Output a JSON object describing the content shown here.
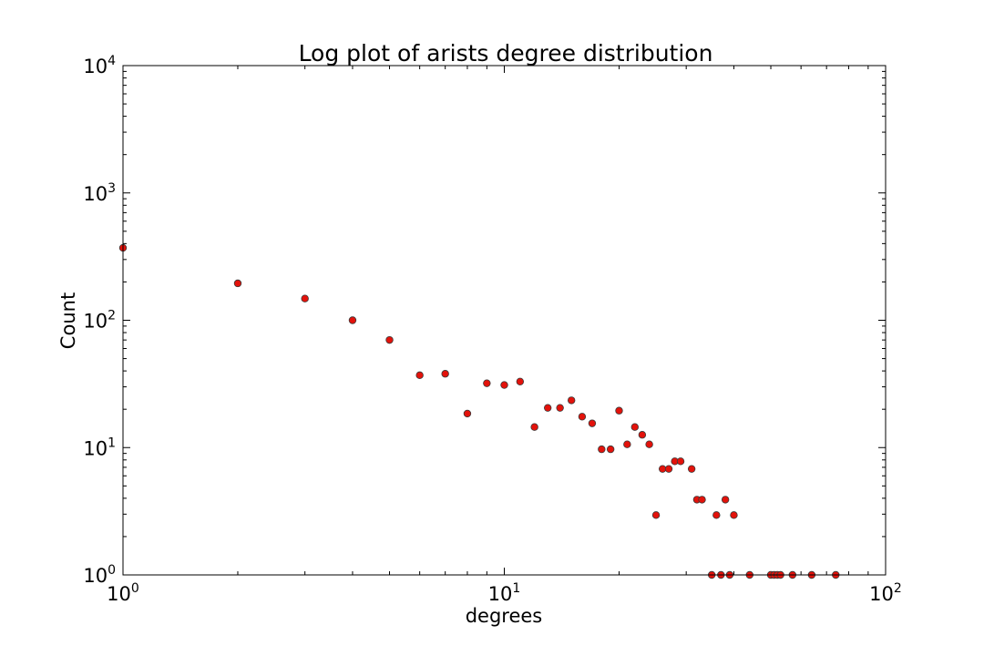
{
  "chart_data": {
    "type": "scatter",
    "title": "Log plot of arists degree distribution",
    "xlabel": "degrees",
    "ylabel": "Count",
    "xscale": "log",
    "yscale": "log",
    "xlim": [
      1,
      100
    ],
    "ylim": [
      1,
      10000
    ],
    "grid": false,
    "marker_color": "#e3120b",
    "marker_edge_color": "#3a3a3a",
    "x_ticks": [
      {
        "base": "10",
        "exp": "0"
      },
      {
        "base": "10",
        "exp": "1"
      },
      {
        "base": "10",
        "exp": "2"
      }
    ],
    "y_ticks": [
      {
        "base": "10",
        "exp": "0"
      },
      {
        "base": "10",
        "exp": "1"
      },
      {
        "base": "10",
        "exp": "2"
      },
      {
        "base": "10",
        "exp": "3"
      },
      {
        "base": "10",
        "exp": "4"
      }
    ],
    "points": [
      [
        1,
        370
      ],
      [
        2,
        195
      ],
      [
        3,
        148
      ],
      [
        4,
        100
      ],
      [
        5,
        70
      ],
      [
        6,
        37
      ],
      [
        7,
        38
      ],
      [
        8,
        18.5
      ],
      [
        9,
        32
      ],
      [
        10,
        31
      ],
      [
        11,
        33
      ],
      [
        12,
        14.5
      ],
      [
        13,
        20.5
      ],
      [
        14,
        20.5
      ],
      [
        15,
        23.5
      ],
      [
        16,
        17.5
      ],
      [
        17,
        15.5
      ],
      [
        18,
        9.7
      ],
      [
        19,
        9.7
      ],
      [
        20,
        19.5
      ],
      [
        21,
        10.6
      ],
      [
        22,
        14.5
      ],
      [
        23,
        12.6
      ],
      [
        24,
        10.6
      ],
      [
        25,
        2.95
      ],
      [
        26,
        6.8
      ],
      [
        27,
        6.8
      ],
      [
        28,
        7.8
      ],
      [
        29,
        7.8
      ],
      [
        31,
        6.8
      ],
      [
        32,
        3.9
      ],
      [
        33,
        3.9
      ],
      [
        35,
        1
      ],
      [
        36,
        2.95
      ],
      [
        37,
        1
      ],
      [
        38,
        3.9
      ],
      [
        39,
        1
      ],
      [
        40,
        2.95
      ],
      [
        44,
        1
      ],
      [
        50,
        1
      ],
      [
        51,
        1
      ],
      [
        52,
        1
      ],
      [
        53,
        1
      ],
      [
        57,
        1
      ],
      [
        64,
        1
      ],
      [
        74,
        1
      ]
    ]
  }
}
